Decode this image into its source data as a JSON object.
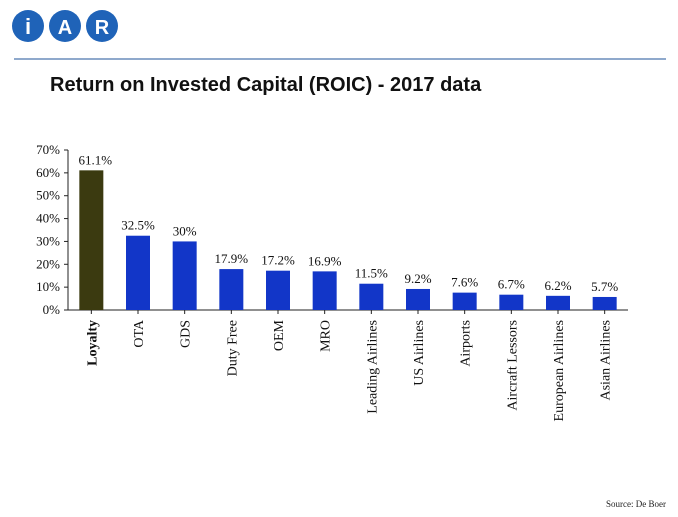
{
  "brand": {
    "letters": [
      "i",
      "A",
      "R"
    ],
    "color": "#1f63b8"
  },
  "slide": {
    "title": "Return on Invested Capital (ROIC) - 2017 data",
    "source": "Source: De Boer"
  },
  "colors": {
    "highlight_bar": "#3b3a10",
    "bar": "#1236c8",
    "rule": "#8fa9cc"
  },
  "chart_data": {
    "type": "bar",
    "title": "",
    "xlabel": "",
    "ylabel": "",
    "ylim": [
      0,
      70
    ],
    "yticks": [
      "0%",
      "10%",
      "20%",
      "30%",
      "40%",
      "50%",
      "60%",
      "70%"
    ],
    "categories": [
      "Loyalty",
      "OTA",
      "GDS",
      "Duty Free",
      "OEM",
      "MRO",
      "Leading Airlines",
      "US Airlines",
      "Airports",
      "Aircraft Lessors",
      "European Airlines",
      "Asian Airlines"
    ],
    "values": [
      61.1,
      32.5,
      30,
      17.9,
      17.2,
      16.9,
      11.5,
      9.2,
      7.6,
      6.7,
      6.2,
      5.7
    ],
    "data_labels": [
      "61.1%",
      "32.5%",
      "30%",
      "17.9%",
      "17.2%",
      "16.9%",
      "11.5%",
      "9.2%",
      "7.6%",
      "6.7%",
      "6.2%",
      "5.7%"
    ],
    "highlight_index": 0,
    "grid": false
  }
}
